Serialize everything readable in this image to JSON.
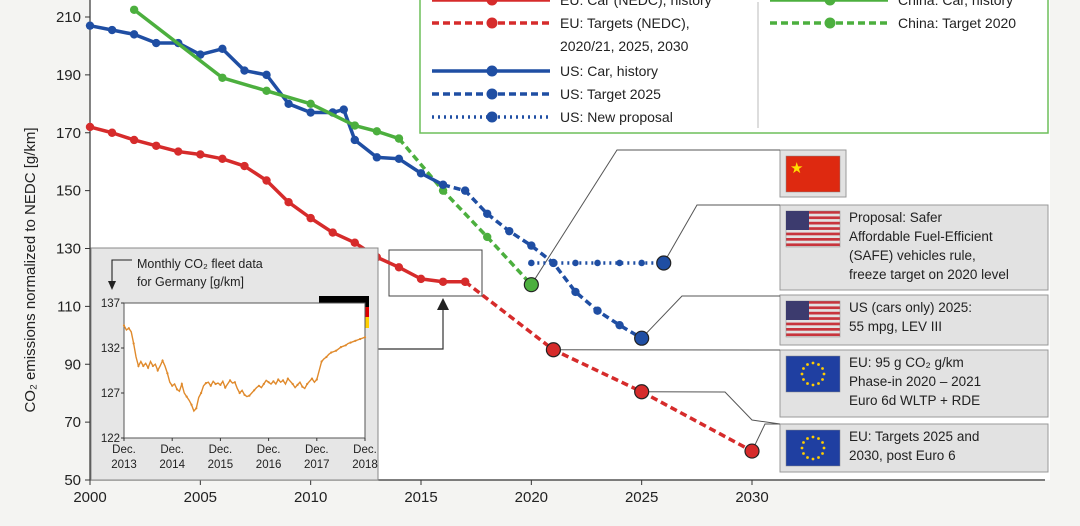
{
  "chart_data": {
    "type": "line",
    "ylabel": "CO₂ emissions normalized to NEDC [g/km]",
    "xlim": [
      2000,
      2030
    ],
    "ylim": [
      50,
      215
    ],
    "x_ticks": [
      2000,
      2005,
      2010,
      2015,
      2020,
      2025,
      2030
    ],
    "y_ticks": [
      50,
      70,
      90,
      110,
      130,
      150,
      170,
      190,
      210
    ],
    "grid": false,
    "legend_position": "top",
    "colors": {
      "eu": "#d62b2b",
      "us": "#1f4ea3",
      "china": "#4caf3e"
    },
    "series": [
      {
        "name": "EU: Car (NEDC), history",
        "color": "#d62b2b",
        "style": "solid",
        "x": [
          2000,
          2001,
          2002,
          2003,
          2004,
          2005,
          2006,
          2007,
          2008,
          2009,
          2010,
          2011,
          2012,
          2013,
          2014,
          2015,
          2016,
          2017
        ],
        "y": [
          172,
          170,
          167.5,
          165.5,
          163.5,
          162.5,
          161,
          158.5,
          153.5,
          146,
          140.5,
          135.5,
          132,
          127,
          123.5,
          119.5,
          118.5,
          118.5
        ]
      },
      {
        "name": "EU: Targets (NEDC), 2020/21, 2025, 2030",
        "color": "#d62b2b",
        "style": "dashed",
        "x": [
          2017,
          2021,
          2025,
          2030
        ],
        "y": [
          118.5,
          95,
          80.5,
          60
        ]
      },
      {
        "name": "China: Car, history",
        "color": "#4caf3e",
        "style": "solid",
        "x": [
          2002,
          2006,
          2008,
          2010,
          2012,
          2013,
          2014
        ],
        "y": [
          212.5,
          189,
          184.5,
          180,
          172.5,
          170.5,
          168
        ]
      },
      {
        "name": "China: Target 2020",
        "color": "#4caf3e",
        "style": "dashed",
        "x": [
          2014,
          2016,
          2018,
          2020
        ],
        "y": [
          168,
          150,
          134,
          117.5
        ]
      },
      {
        "name": "US: Car, history",
        "color": "#1f4ea3",
        "style": "solid",
        "x": [
          2000,
          2001,
          2002,
          2003,
          2004,
          2005,
          2006,
          2007,
          2008,
          2009,
          2010,
          2011,
          2011.5,
          2012,
          2013,
          2014,
          2015,
          2016
        ],
        "y": [
          207,
          205.5,
          204,
          201,
          201,
          197,
          199,
          191.5,
          190,
          180,
          177,
          177,
          178,
          167.5,
          161.5,
          161,
          156,
          152
        ]
      },
      {
        "name": "US: Target 2025",
        "color": "#1f4ea3",
        "style": "dashed",
        "x": [
          2016,
          2017,
          2018,
          2019,
          2020,
          2021,
          2022,
          2023,
          2024,
          2025
        ],
        "y": [
          152,
          150,
          142,
          136,
          131,
          125,
          115,
          108.5,
          103.5,
          99
        ]
      },
      {
        "name": "US: New proposal",
        "color": "#1f4ea3",
        "style": "dotted",
        "x": [
          2020,
          2021,
          2022,
          2023,
          2024,
          2025,
          2026
        ],
        "y": [
          125,
          125,
          125,
          125,
          125,
          125,
          125
        ]
      }
    ],
    "markers": [
      {
        "series": "EU",
        "x": 2021,
        "y": 95
      },
      {
        "series": "EU",
        "x": 2025,
        "y": 80.5
      },
      {
        "series": "EU",
        "x": 2030,
        "y": 60
      },
      {
        "series": "China",
        "x": 2020,
        "y": 117.5
      },
      {
        "series": "US",
        "x": 2025,
        "y": 99
      },
      {
        "series": "US",
        "x": 2026,
        "y": 125
      }
    ],
    "annotations": [
      {
        "flag": "china",
        "lines": []
      },
      {
        "flag": "us",
        "lines": [
          "Proposal: Safer",
          "Affordable Fuel-Efficient",
          "(SAFE) vehicles rule,",
          "freeze target on 2020 level"
        ]
      },
      {
        "flag": "us",
        "lines": [
          "US (cars only) 2025:",
          "55 mpg, LEV III"
        ]
      },
      {
        "flag": "eu",
        "lines": [
          "EU: 95 g CO₂ g/km",
          "Phase-in 2020 – 2021",
          "Euro 6d WLTP + RDE"
        ]
      },
      {
        "flag": "eu",
        "lines": [
          "EU: Targets 2025 and",
          "2030, post Euro 6"
        ]
      }
    ],
    "legend": [
      {
        "label": "EU: Car (NEDC), history",
        "series": 0
      },
      {
        "label": "EU: Targets (NEDC),",
        "label2": "2020/21, 2025, 2030",
        "series": 1
      },
      {
        "label": "US: Car, history",
        "series": 4
      },
      {
        "label": "US: Target 2025",
        "series": 5
      },
      {
        "label": "US: New proposal",
        "series": 6
      },
      {
        "label": "China: Car, history",
        "series": 2
      },
      {
        "label": "China: Target 2020",
        "series": 3
      }
    ],
    "inset": {
      "title_line1": "Monthly CO₂ fleet data",
      "title_line2": "for Germany [g/km]",
      "ylim": [
        122,
        137
      ],
      "y_ticks": [
        122,
        127,
        132,
        137
      ],
      "x_ticks": [
        {
          "line1": "Dec.",
          "line2": "2013"
        },
        {
          "line1": "Dec.",
          "line2": "2014"
        },
        {
          "line1": "Dec.",
          "line2": "2015"
        },
        {
          "line1": "Dec.",
          "line2": "2016"
        },
        {
          "line1": "Dec.",
          "line2": "2017"
        },
        {
          "line1": "Dec.",
          "line2": "2018"
        }
      ],
      "color": "#e08a2c",
      "months_from_dec2013": [
        0,
        1,
        2,
        3,
        4,
        5,
        6,
        7,
        8,
        9,
        10,
        11,
        12,
        13,
        14,
        15,
        16,
        17,
        18,
        19,
        20,
        21,
        22,
        23,
        24,
        25,
        26,
        27,
        28,
        29,
        30,
        31,
        32,
        33,
        34,
        35,
        36,
        37,
        38,
        39,
        40,
        41,
        42,
        43,
        44,
        45,
        46,
        47,
        48,
        49,
        50,
        51,
        52,
        53,
        54,
        55,
        56,
        57,
        58,
        59,
        60,
        61,
        62,
        63,
        64,
        65,
        66,
        67,
        68,
        69,
        70,
        71,
        72,
        73,
        74,
        75,
        76,
        77,
        78,
        79,
        80,
        81,
        82,
        83,
        84,
        85,
        86,
        87,
        88,
        89,
        90,
        91,
        92,
        93,
        94,
        95,
        96,
        97,
        98,
        99,
        100
      ],
      "values": [
        134.5,
        134,
        134.2,
        133.8,
        132.5,
        131,
        130,
        130.5,
        130,
        130.3,
        129.8,
        130.5,
        130,
        130.2,
        129.5,
        130,
        130.6,
        130,
        129.2,
        128.2,
        127.8,
        128,
        127.4,
        127.2,
        128,
        127,
        126.6,
        126.2,
        125.7,
        125,
        125.3,
        126.5,
        127,
        127.8,
        128.1,
        128.2,
        127.8,
        128.3,
        128,
        128.1,
        127.9,
        128.3,
        127.6,
        128,
        128.4,
        128.1,
        128.2,
        127.5,
        127,
        127.3,
        126.8,
        126.6,
        126.7,
        127,
        127.3,
        127.6,
        127.8,
        127.6,
        128,
        128.4,
        128.2,
        128,
        128.3,
        128,
        128.5,
        128.2,
        128.4,
        128,
        128.6,
        128.3,
        128,
        127.6,
        127.9,
        128.2,
        127.7,
        127.5,
        128,
        128.3,
        128.6,
        128.2,
        128.5,
        129.5,
        130.5,
        130.8,
        131,
        131.3,
        131.5,
        131.6,
        131.7,
        131.9,
        132.1,
        132.2,
        132.3,
        132.5,
        132.6,
        132.7,
        132.8,
        132.9,
        133,
        133.1,
        133.2
      ]
    }
  }
}
